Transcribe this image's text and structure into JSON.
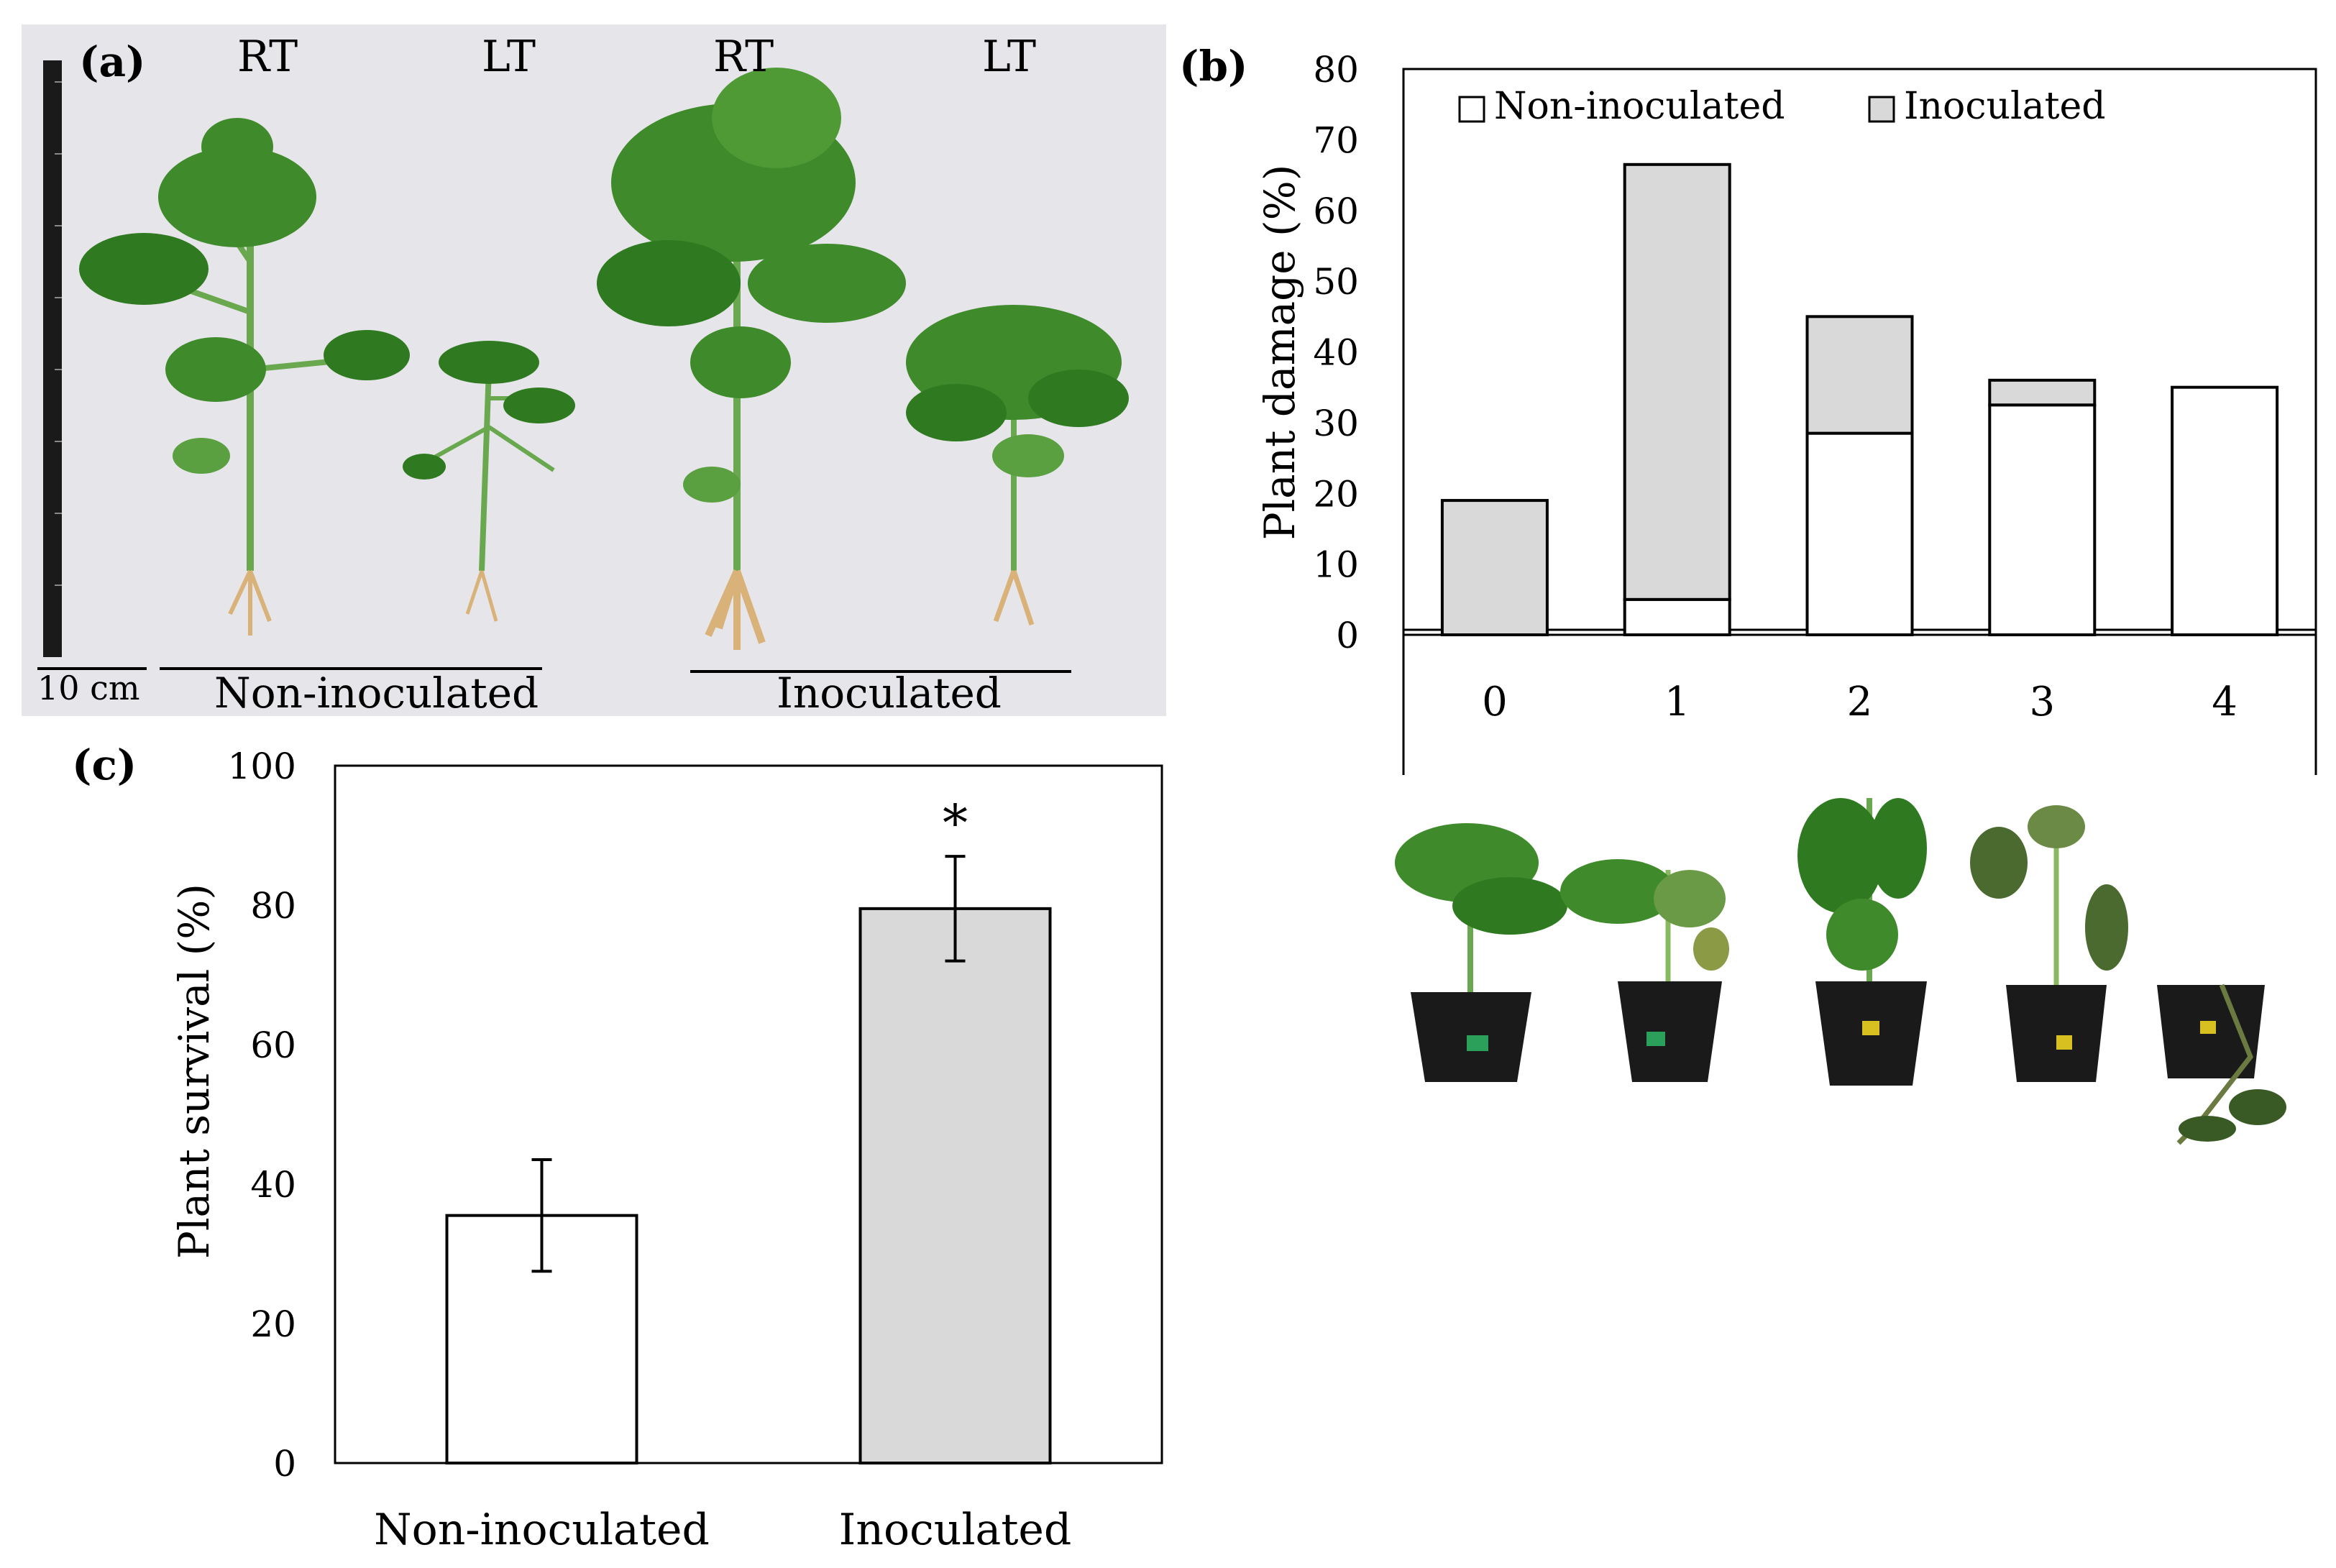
{
  "panel_a": {
    "letter": "(a)",
    "top_labels": [
      "RT",
      "LT",
      "RT",
      "LT"
    ],
    "scale_label": "10 cm",
    "group_labels": [
      "Non-inoculated",
      "Inoculated"
    ],
    "photo": "four tomato plants on grey background with scale ruler"
  },
  "panel_b": {
    "letter": "(b)",
    "photo": "five potted tomato plants showing damage scores 0 to 4"
  },
  "panel_c": {
    "letter": "(c)"
  },
  "chart_data": [
    {
      "type": "bar",
      "stacked": true,
      "categories": [
        "0",
        "1",
        "2",
        "3",
        "4"
      ],
      "series": [
        {
          "name": "Non-inoculated",
          "values": [
            0,
            5,
            28.5,
            32.5,
            35
          ],
          "color": "#ffffff"
        },
        {
          "name": "Inoculated",
          "values": [
            19,
            61.5,
            16.5,
            3.5,
            0
          ],
          "color": "#d9d9d9"
        }
      ],
      "xlabel": "",
      "ylabel": "Plant damage (%)",
      "ylim": [
        0,
        80
      ],
      "yticks": [
        0,
        10,
        20,
        30,
        40,
        50,
        60,
        70,
        80
      ],
      "legend": "top",
      "grid": false
    },
    {
      "type": "bar",
      "categories": [
        "Non-inoculated",
        "Inoculated"
      ],
      "values": [
        35.5,
        79.5
      ],
      "errors": [
        8,
        7.5
      ],
      "colors": [
        "#ffffff",
        "#d9d9d9"
      ],
      "significance": [
        "",
        "*"
      ],
      "xlabel": "",
      "ylabel": "Plant survival (%)",
      "ylim": [
        0,
        100
      ],
      "yticks": [
        0,
        20,
        40,
        60,
        80,
        100
      ],
      "grid": false
    }
  ]
}
